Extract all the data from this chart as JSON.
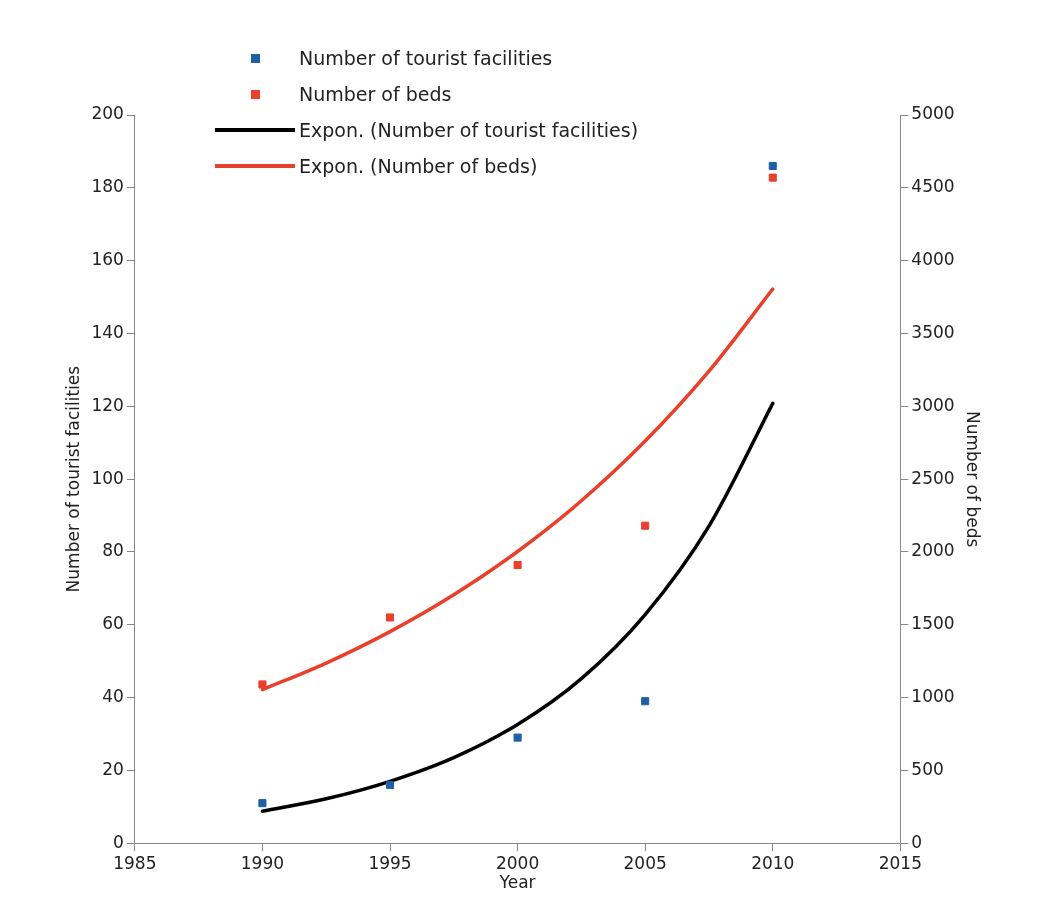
{
  "chart_data": {
    "type": "scatter",
    "xlabel": "Year",
    "ylabel": "Number of tourist facilities",
    "y2label": "Number of beds",
    "xlim": [
      1985,
      2015
    ],
    "xticks": [
      1985,
      1990,
      1995,
      2000,
      2005,
      2010,
      2015
    ],
    "ylim": [
      0,
      200
    ],
    "yticks": [
      0,
      20,
      40,
      60,
      80,
      100,
      120,
      140,
      160,
      180,
      200
    ],
    "y2lim": [
      0,
      5000
    ],
    "y2ticks": [
      0,
      500,
      1000,
      1500,
      2000,
      2500,
      3000,
      3500,
      4000,
      4500,
      5000
    ],
    "grid": false,
    "legend": "top",
    "marker": "square",
    "series": [
      {
        "name": "Number of tourist facilities",
        "color": "#1f5fa8",
        "x": [
          1990,
          1995,
          2000,
          2005,
          2010
        ],
        "values": [
          11,
          16,
          29,
          39,
          186
        ]
      },
      {
        "name": "Number of beds",
        "axis": "y2",
        "color": "#e8402a",
        "x": [
          1990,
          1995,
          2000,
          2005,
          2010
        ],
        "values": [
          1090,
          1550,
          1910,
          2180,
          4570
        ]
      },
      {
        "name": "Expon. (Number of tourist facilities)",
        "type": "line",
        "marker": "none",
        "color": "#000000",
        "x": [
          1990,
          1992.5,
          1995,
          1997.5,
          2000,
          2002.5,
          2005,
          2007.5,
          2010
        ],
        "values": [
          8.8,
          12.2,
          17,
          23.5,
          32.6,
          45.2,
          62.8,
          87.1,
          120.8
        ]
      },
      {
        "name": "Expon. (Number of beds)",
        "type": "line",
        "marker": "none",
        "axis": "y2",
        "color": "#e8402a",
        "x": [
          1990,
          1992.5,
          1995,
          1997.5,
          2000,
          2002.5,
          2005,
          2007.5,
          2010
        ],
        "values": [
          1054,
          1237,
          1453,
          1706,
          2003,
          2351,
          2761,
          3241,
          3805
        ]
      }
    ]
  }
}
